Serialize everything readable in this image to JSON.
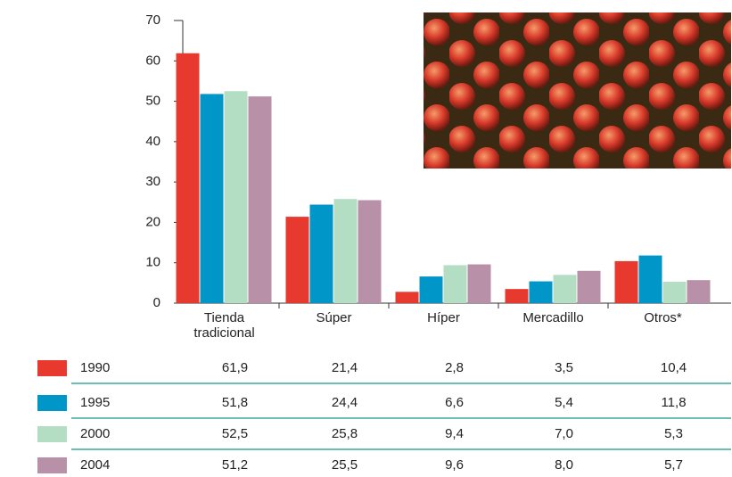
{
  "chart_data": {
    "type": "bar",
    "categories": [
      "Tienda tradicional",
      "Súper",
      "Híper",
      "Mercadillo",
      "Otros*"
    ],
    "series": [
      {
        "name": "1990",
        "color": "#e8392f",
        "values": [
          61.9,
          21.4,
          2.8,
          3.5,
          10.4
        ],
        "value_labels": [
          "61,9",
          "21,4",
          "2,8",
          "3,5",
          "10,4"
        ]
      },
      {
        "name": "1995",
        "color": "#0096c8",
        "values": [
          51.8,
          24.4,
          6.6,
          5.4,
          11.8
        ],
        "value_labels": [
          "51,8",
          "24,4",
          "6,6",
          "5,4",
          "11,8"
        ]
      },
      {
        "name": "2000",
        "color": "#b3dec3",
        "values": [
          52.5,
          25.8,
          9.4,
          7.0,
          5.3
        ],
        "value_labels": [
          "52,5",
          "25,8",
          "9,4",
          "7,0",
          "5,3"
        ]
      },
      {
        "name": "2004",
        "color": "#b890a8",
        "values": [
          51.2,
          25.5,
          9.6,
          8.0,
          5.7
        ],
        "value_labels": [
          "51,2",
          "25,5",
          "9,6",
          "8,0",
          "5,7"
        ]
      }
    ],
    "ylim": [
      0,
      70
    ],
    "yticks": [
      0,
      10,
      20,
      30,
      40,
      50,
      60,
      70
    ]
  }
}
